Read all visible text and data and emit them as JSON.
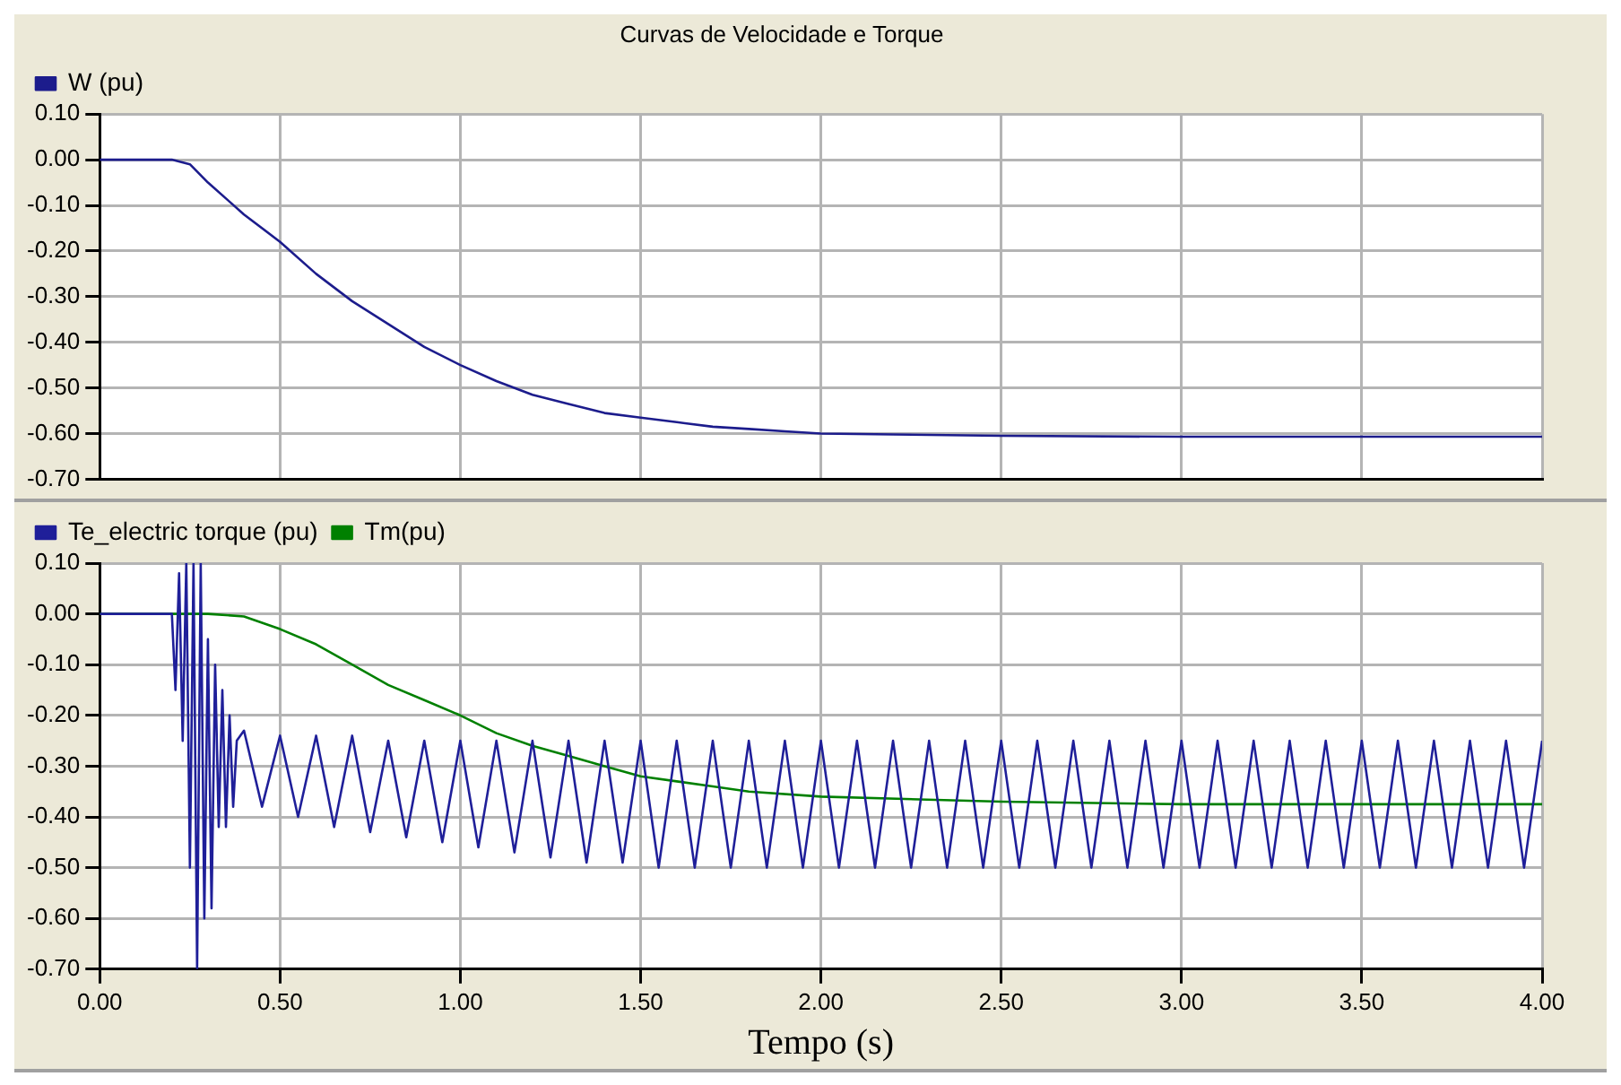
{
  "chart_data": [
    {
      "type": "line",
      "title": "Curvas de Velocidade e Torque",
      "legend": "top",
      "grid": true,
      "tick_labels": "y",
      "xlim": [
        0,
        4
      ],
      "xticks": [
        {
          "value": 0,
          "label": null
        },
        {
          "value": 0.5,
          "label": null
        },
        {
          "value": 1,
          "label": null
        },
        {
          "value": 1.5,
          "label": null
        },
        {
          "value": 2,
          "label": null
        },
        {
          "value": 2.5,
          "label": null
        },
        {
          "value": 3,
          "label": null
        },
        {
          "value": 3.5,
          "label": null
        },
        {
          "value": 4,
          "label": null
        }
      ],
      "ylim": [
        -0.7,
        0.1
      ],
      "yticks": [
        {
          "value": 0.1,
          "label": "0.10"
        },
        {
          "value": 0,
          "label": "0.00"
        },
        {
          "value": -0.1,
          "label": "-0.10"
        },
        {
          "value": -0.2,
          "label": "-0.20"
        },
        {
          "value": -0.3,
          "label": "-0.30"
        },
        {
          "value": -0.4,
          "label": "-0.40"
        },
        {
          "value": -0.5,
          "label": "-0.50"
        },
        {
          "value": -0.6,
          "label": "-0.60"
        },
        {
          "value": -0.7,
          "label": "-0.70"
        }
      ],
      "series": [
        {
          "name": "W (pu)",
          "color": "#1c1c8c",
          "x": [
            0,
            0.2,
            0.25,
            0.3,
            0.4,
            0.5,
            0.6,
            0.7,
            0.8,
            0.9,
            1.0,
            1.1,
            1.2,
            1.3,
            1.4,
            1.5,
            1.6,
            1.7,
            1.8,
            1.9,
            2.0,
            2.2,
            2.5,
            3.0,
            4.0
          ],
          "values": [
            0,
            0,
            -0.01,
            -0.05,
            -0.12,
            -0.18,
            -0.25,
            -0.31,
            -0.36,
            -0.41,
            -0.45,
            -0.485,
            -0.515,
            -0.535,
            -0.555,
            -0.565,
            -0.575,
            -0.585,
            -0.59,
            -0.595,
            -0.6,
            -0.602,
            -0.605,
            -0.607,
            -0.607
          ]
        }
      ]
    },
    {
      "type": "line",
      "xlabel": "Tempo (s)",
      "legend": "top",
      "grid": true,
      "xlim": [
        0,
        4
      ],
      "xticks": [
        {
          "value": 0,
          "label": "0.00"
        },
        {
          "value": 0.5,
          "label": "0.50"
        },
        {
          "value": 1,
          "label": "1.00"
        },
        {
          "value": 1.5,
          "label": "1.50"
        },
        {
          "value": 2,
          "label": "2.00"
        },
        {
          "value": 2.5,
          "label": "2.50"
        },
        {
          "value": 3,
          "label": "3.00"
        },
        {
          "value": 3.5,
          "label": "3.50"
        },
        {
          "value": 4,
          "label": "4.00"
        }
      ],
      "ylim": [
        -0.7,
        0.1
      ],
      "yticks": [
        {
          "value": 0.1,
          "label": "0.10"
        },
        {
          "value": 0,
          "label": "0.00"
        },
        {
          "value": -0.1,
          "label": "-0.10"
        },
        {
          "value": -0.2,
          "label": "-0.20"
        },
        {
          "value": -0.3,
          "label": "-0.30"
        },
        {
          "value": -0.4,
          "label": "-0.40"
        },
        {
          "value": -0.5,
          "label": "-0.50"
        },
        {
          "value": -0.6,
          "label": "-0.60"
        },
        {
          "value": -0.7,
          "label": "-0.70"
        }
      ],
      "series": [
        {
          "name": "Te_electric torque (pu)",
          "color": "#1f1f99",
          "x": [
            0,
            0.2,
            0.21,
            0.22,
            0.23,
            0.24,
            0.25,
            0.26,
            0.27,
            0.28,
            0.29,
            0.3,
            0.31,
            0.32,
            0.33,
            0.34,
            0.35,
            0.36,
            0.37,
            0.38,
            0.4,
            0.45,
            0.5,
            0.55,
            0.6,
            0.65,
            0.7,
            0.75,
            0.8,
            0.85,
            0.9,
            0.95,
            1.0,
            1.05,
            1.1,
            1.15,
            1.2,
            1.25,
            1.3,
            1.35,
            1.4,
            1.45,
            1.5,
            1.55,
            1.6,
            1.65,
            1.7,
            1.75,
            1.8,
            1.85,
            1.9,
            1.95,
            2.0,
            2.05,
            2.1,
            2.15,
            2.2,
            2.25,
            2.3,
            2.35,
            2.4,
            2.45,
            2.5,
            2.55,
            2.6,
            2.65,
            2.7,
            2.75,
            2.8,
            2.85,
            2.9,
            2.95,
            3.0,
            3.05,
            3.1,
            3.15,
            3.2,
            3.25,
            3.3,
            3.35,
            3.4,
            3.45,
            3.5,
            3.55,
            3.6,
            3.65,
            3.7,
            3.75,
            3.8,
            3.85,
            3.9,
            3.95,
            4.0
          ],
          "values": [
            0,
            0,
            -0.15,
            0.08,
            -0.25,
            0.1,
            -0.5,
            0.1,
            -0.7,
            0.1,
            -0.6,
            -0.05,
            -0.58,
            -0.1,
            -0.42,
            -0.15,
            -0.42,
            -0.2,
            -0.38,
            -0.25,
            -0.23,
            -0.38,
            -0.24,
            -0.4,
            -0.24,
            -0.42,
            -0.24,
            -0.43,
            -0.25,
            -0.44,
            -0.25,
            -0.45,
            -0.25,
            -0.46,
            -0.25,
            -0.47,
            -0.25,
            -0.48,
            -0.25,
            -0.49,
            -0.25,
            -0.49,
            -0.25,
            -0.5,
            -0.25,
            -0.5,
            -0.25,
            -0.5,
            -0.25,
            -0.5,
            -0.25,
            -0.5,
            -0.25,
            -0.5,
            -0.25,
            -0.5,
            -0.25,
            -0.5,
            -0.25,
            -0.5,
            -0.25,
            -0.5,
            -0.25,
            -0.5,
            -0.25,
            -0.5,
            -0.25,
            -0.5,
            -0.25,
            -0.5,
            -0.25,
            -0.5,
            -0.25,
            -0.5,
            -0.25,
            -0.5,
            -0.25,
            -0.5,
            -0.25,
            -0.5,
            -0.25,
            -0.5,
            -0.25,
            -0.5,
            -0.25,
            -0.5,
            -0.25,
            -0.5,
            -0.25,
            -0.5,
            -0.25,
            -0.5,
            -0.25
          ]
        },
        {
          "name": "Tm(pu)",
          "color": "#008000",
          "x": [
            0,
            0.3,
            0.4,
            0.5,
            0.6,
            0.7,
            0.8,
            0.9,
            1.0,
            1.1,
            1.2,
            1.3,
            1.4,
            1.5,
            1.6,
            1.7,
            1.8,
            2.0,
            2.5,
            3.0,
            4.0
          ],
          "values": [
            0,
            0,
            -0.005,
            -0.03,
            -0.06,
            -0.1,
            -0.14,
            -0.17,
            -0.2,
            -0.235,
            -0.26,
            -0.28,
            -0.3,
            -0.32,
            -0.33,
            -0.34,
            -0.35,
            -0.36,
            -0.37,
            -0.375,
            -0.375
          ]
        }
      ]
    }
  ]
}
